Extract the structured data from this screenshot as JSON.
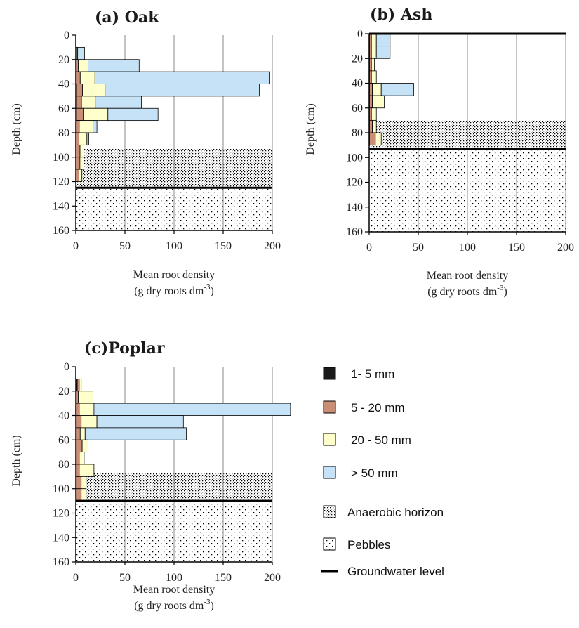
{
  "chart_data": [
    {
      "type": "bar",
      "orientation": "horizontal",
      "title": "(a) Oak",
      "xlabel": "Mean root density",
      "xlabel2": "(g dry roots dm",
      "xlabel_sup": "-3",
      "xlabel_end": ")",
      "ylabel": "Depth (cm)",
      "xlim": [
        0,
        200
      ],
      "ylim": [
        0,
        160
      ],
      "xticks": [
        "0",
        "50",
        "100",
        "150",
        "200"
      ],
      "yticks": [
        "0",
        "20",
        "40",
        "60",
        "80",
        "100",
        "120",
        "140",
        "160"
      ],
      "anaerobic_horizon": [
        93,
        125
      ],
      "pebbles": [
        125,
        160
      ],
      "groundwater_level": 125,
      "bars": [
        {
          "depth": [
            10,
            20
          ],
          "values": [
            0.3,
            0.6,
            1.0,
            7
          ]
        },
        {
          "depth": [
            20,
            30
          ],
          "values": [
            0.5,
            2,
            10,
            52
          ]
        },
        {
          "depth": [
            30,
            40
          ],
          "values": [
            0.5,
            4,
            15,
            178
          ]
        },
        {
          "depth": [
            40,
            50
          ],
          "values": [
            0.8,
            6,
            23,
            157
          ]
        },
        {
          "depth": [
            50,
            60
          ],
          "values": [
            0.8,
            5,
            14,
            47
          ]
        },
        {
          "depth": [
            60,
            70
          ],
          "values": [
            0.7,
            7,
            25,
            51
          ]
        },
        {
          "depth": [
            70,
            80
          ],
          "values": [
            0.5,
            3,
            14,
            4
          ]
        },
        {
          "depth": [
            80,
            90
          ],
          "values": [
            0.3,
            3,
            8,
            2
          ]
        },
        {
          "depth": [
            90,
            100
          ],
          "values": [
            0.3,
            4,
            4,
            0
          ]
        },
        {
          "depth": [
            100,
            110
          ],
          "values": [
            0.2,
            4,
            4,
            0
          ]
        },
        {
          "depth": [
            110,
            120
          ],
          "values": [
            0.2,
            3,
            3,
            0
          ]
        }
      ]
    },
    {
      "type": "bar",
      "orientation": "horizontal",
      "title": "(b) Ash",
      "xlabel": "Mean root density",
      "xlabel2": "(g dry roots dm",
      "xlabel_sup": "-3",
      "xlabel_end": ")",
      "ylabel": "Depth (cm)",
      "xlim": [
        0,
        200
      ],
      "ylim": [
        0,
        160
      ],
      "xticks": [
        "0",
        "50",
        "100",
        "150",
        "200"
      ],
      "yticks": [
        "0",
        "20",
        "40",
        "60",
        "80",
        "100",
        "120",
        "140",
        "160"
      ],
      "anaerobic_horizon": [
        70,
        93
      ],
      "pebbles": [
        93,
        160
      ],
      "groundwater_level": 93,
      "top_line": true,
      "bars": [
        {
          "depth": [
            0,
            10
          ],
          "values": [
            0.3,
            2,
            5,
            14
          ]
        },
        {
          "depth": [
            10,
            20
          ],
          "values": [
            0.3,
            2,
            5,
            14
          ]
        },
        {
          "depth": [
            20,
            30
          ],
          "values": [
            0.3,
            2,
            3,
            0
          ]
        },
        {
          "depth": [
            30,
            40
          ],
          "values": [
            0.3,
            2,
            5,
            0
          ]
        },
        {
          "depth": [
            40,
            50
          ],
          "values": [
            0.3,
            3,
            9,
            33
          ]
        },
        {
          "depth": [
            50,
            60
          ],
          "values": [
            0.3,
            3,
            12,
            0
          ]
        },
        {
          "depth": [
            60,
            70
          ],
          "values": [
            0.3,
            2,
            5,
            0
          ]
        },
        {
          "depth": [
            70,
            80
          ],
          "values": [
            0.3,
            3,
            4,
            0
          ]
        },
        {
          "depth": [
            80,
            90
          ],
          "values": [
            0.3,
            6,
            6,
            0
          ]
        }
      ]
    },
    {
      "type": "bar",
      "orientation": "horizontal",
      "title": "(c)Poplar",
      "xlabel": "Mean root density",
      "xlabel2": "(g dry roots dm",
      "xlabel_sup": "-3",
      "xlabel_end": ")",
      "ylabel": "Depth (cm)",
      "xlim": [
        0,
        200
      ],
      "ylim": [
        0,
        160
      ],
      "xticks": [
        "0",
        "50",
        "100",
        "150",
        "200"
      ],
      "yticks": [
        "0",
        "20",
        "40",
        "60",
        "80",
        "100",
        "120",
        "140",
        "160"
      ],
      "anaerobic_horizon": [
        87,
        110
      ],
      "pebbles": [
        110,
        160
      ],
      "groundwater_level": 110,
      "bars": [
        {
          "depth": [
            10,
            20
          ],
          "values": [
            1.5,
            2,
            2,
            0
          ]
        },
        {
          "depth": [
            20,
            30
          ],
          "values": [
            0.5,
            2,
            15,
            0
          ]
        },
        {
          "depth": [
            30,
            40
          ],
          "values": [
            0.5,
            3,
            15,
            200
          ]
        },
        {
          "depth": [
            40,
            50
          ],
          "values": [
            0.5,
            5,
            16,
            88
          ]
        },
        {
          "depth": [
            50,
            60
          ],
          "values": [
            0.5,
            4,
            5,
            103
          ]
        },
        {
          "depth": [
            60,
            70
          ],
          "values": [
            0.5,
            6,
            6,
            0
          ]
        },
        {
          "depth": [
            70,
            80
          ],
          "values": [
            0.5,
            3,
            5,
            0
          ]
        },
        {
          "depth": [
            80,
            90
          ],
          "values": [
            0.5,
            3,
            15,
            0
          ]
        },
        {
          "depth": [
            90,
            100
          ],
          "values": [
            0.5,
            5,
            5,
            0
          ]
        },
        {
          "depth": [
            100,
            110
          ],
          "values": [
            0.5,
            5,
            5,
            0
          ]
        }
      ]
    }
  ],
  "legend": {
    "items": [
      {
        "label": "1- 5 mm",
        "kind": "box",
        "color": "#1a1a1a"
      },
      {
        "label": "5 - 20 mm",
        "kind": "box",
        "color": "#c98f76"
      },
      {
        "label": "20 - 50 mm",
        "kind": "box",
        "color": "#ffffcc"
      },
      {
        "label": "> 50 mm",
        "kind": "box",
        "color": "#c6e2f7"
      },
      {
        "label": "Anaerobic horizon",
        "kind": "dense"
      },
      {
        "label": "Pebbles",
        "kind": "sparse"
      },
      {
        "label": "Groundwater level",
        "kind": "line"
      }
    ]
  },
  "colors": {
    "size_1_5": "#1a1a1a",
    "size_5_20": "#c98f76",
    "size_20_50": "#ffffcc",
    "size_gt_50": "#c6e2f7",
    "axis": "#000000",
    "grid": "#888888"
  }
}
